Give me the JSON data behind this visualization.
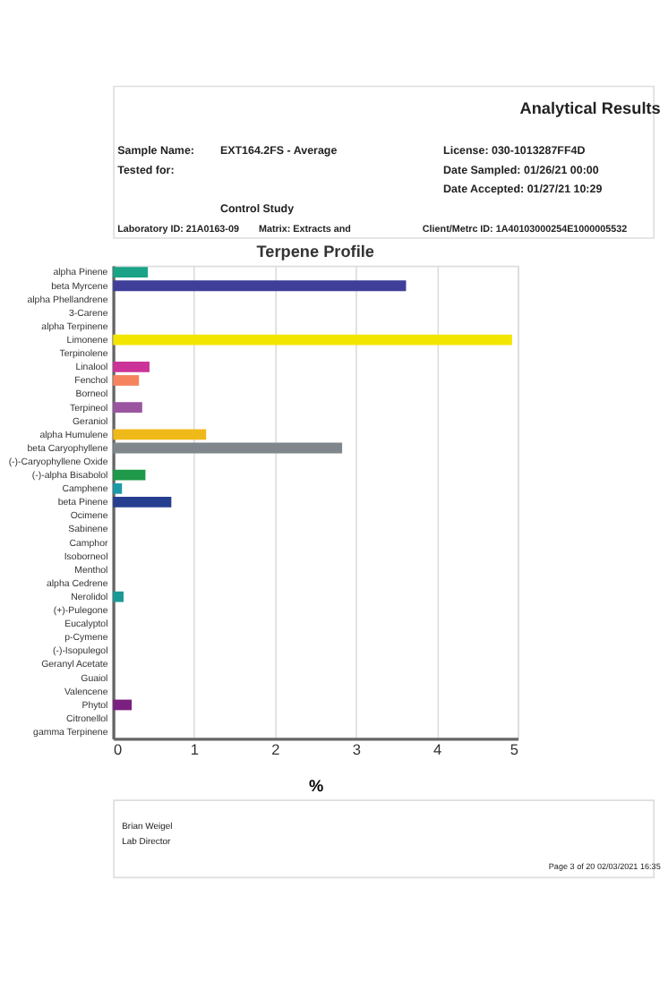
{
  "chart_data": {
    "type": "bar",
    "orientation": "horizontal",
    "title": "Terpene Profile",
    "xlabel": "%",
    "categories": [
      "alpha Pinene",
      "beta Myrcene",
      "alpha Phellandrene",
      "3-Carene",
      "alpha Terpinene",
      "Limonene",
      "Terpinolene",
      "Linalool",
      "Fenchol",
      "Borneol",
      "Terpineol",
      "Geraniol",
      "alpha Humulene",
      "beta Caryophyllene",
      "(-)-Caryophyllene Oxide",
      "(-)-alpha Bisabolol",
      "Camphene",
      "beta Pinene",
      "Ocimene",
      "Sabinene",
      "Camphor",
      "Isoborneol",
      "Menthol",
      "alpha Cedrene",
      "Nerolidol",
      "(+)-Pulegone",
      "Eucalyptol",
      "p-Cymene",
      "(-)-Isopulegol",
      "Geranyl Acetate",
      "Guaiol",
      "Valencene",
      "Phytol",
      "Citronellol",
      "gamma Terpinene"
    ],
    "values": [
      0.43,
      3.62,
      0,
      0,
      0,
      4.93,
      0,
      0.45,
      0.32,
      0,
      0.36,
      0,
      1.15,
      2.83,
      0,
      0.4,
      0.11,
      0.72,
      0,
      0,
      0,
      0,
      0,
      0,
      0.13,
      0,
      0,
      0,
      0,
      0,
      0,
      0,
      0.23,
      0,
      0
    ],
    "colors": [
      "#1aa387",
      "#3f3f9a",
      "#808080",
      "#808080",
      "#808080",
      "#f2e600",
      "#808080",
      "#cc3399",
      "#f5845e",
      "#808080",
      "#9a559f",
      "#808080",
      "#f0b91a",
      "#7f878c",
      "#808080",
      "#1f9a4a",
      "#1a9aa8",
      "#263e8f",
      "#808080",
      "#808080",
      "#808080",
      "#808080",
      "#808080",
      "#808080",
      "#1a9a95",
      "#808080",
      "#808080",
      "#808080",
      "#808080",
      "#808080",
      "#808080",
      "#808080",
      "#7a2080",
      "#808080",
      "#808080"
    ],
    "xlim": [
      0,
      5
    ],
    "xticks": [
      0,
      1,
      2,
      3,
      4,
      5
    ],
    "grid": "x",
    "annotations": [
      "Analytical Results",
      "Sample Name:",
      "EXT164.2FS - Average",
      "Tested for:",
      "Control Study",
      "License: 030-1013287FF4D",
      "Date Sampled: 01/26/21 00:00",
      "Date Accepted: 01/27/21 10:29",
      "Laboratory ID: 21A0163-09",
      "Matrix: Extracts and",
      "Client/Metrc ID: 1A40103000254E1000005532",
      "Brian Weigel",
      "Lab Director",
      "Page 3 of 20 02/03/2021 16:35"
    ]
  }
}
